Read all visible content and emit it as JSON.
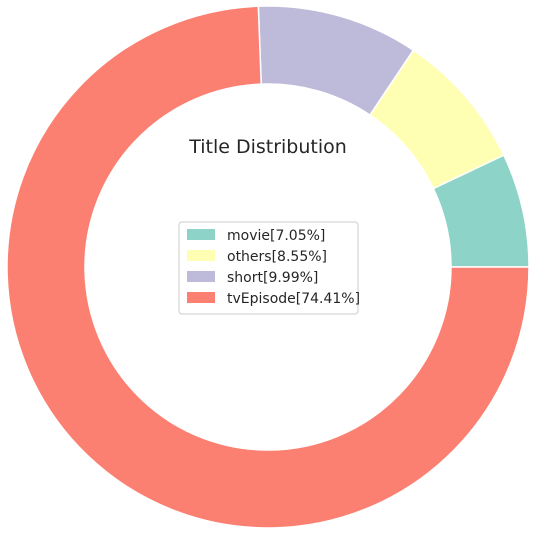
{
  "chart_data": {
    "type": "pie",
    "subtype": "donut",
    "title": "Title Distribution",
    "categories": [
      "movie",
      "others",
      "short",
      "tvEpisode"
    ],
    "values": [
      7.05,
      8.55,
      9.99,
      74.41
    ],
    "unit": "%",
    "colors": [
      "#8dd3c7",
      "#ffffb3",
      "#bebada",
      "#fb8072"
    ],
    "legend_labels": [
      "movie[7.05%]",
      "others[8.55%]",
      "short[9.99%]",
      "tvEpisode[74.41%]"
    ],
    "legend_position": "center",
    "start_angle_deg": 0,
    "direction": "counterclockwise",
    "edge_color": "#ffffff"
  }
}
